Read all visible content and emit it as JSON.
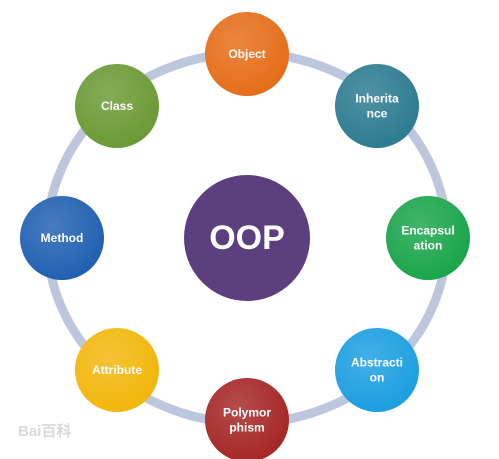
{
  "diagram": {
    "center": {
      "label": "OOP",
      "color": "#5b3f7e"
    },
    "ring_color": "#bcc6dd",
    "nodes": [
      {
        "id": "object",
        "lines": [
          "Object"
        ],
        "color": "#e56c16"
      },
      {
        "id": "inheritance",
        "lines": [
          "Inherita",
          "nce"
        ],
        "color": "#2b7a90"
      },
      {
        "id": "encapsulation",
        "lines": [
          "Encapsul",
          "ation"
        ],
        "color": "#18a44a"
      },
      {
        "id": "abstraction",
        "lines": [
          "Abstracti",
          "on"
        ],
        "color": "#1a9ee0"
      },
      {
        "id": "polymorphism",
        "lines": [
          "Polymor",
          "phism"
        ],
        "color": "#a52525"
      },
      {
        "id": "attribute",
        "lines": [
          "Attribute"
        ],
        "color": "#f2b609"
      },
      {
        "id": "method",
        "lines": [
          "Method"
        ],
        "color": "#1f5fb0"
      },
      {
        "id": "class",
        "lines": [
          "Class"
        ],
        "color": "#6a9933"
      }
    ]
  },
  "watermark": {
    "text": "Bai百科"
  }
}
